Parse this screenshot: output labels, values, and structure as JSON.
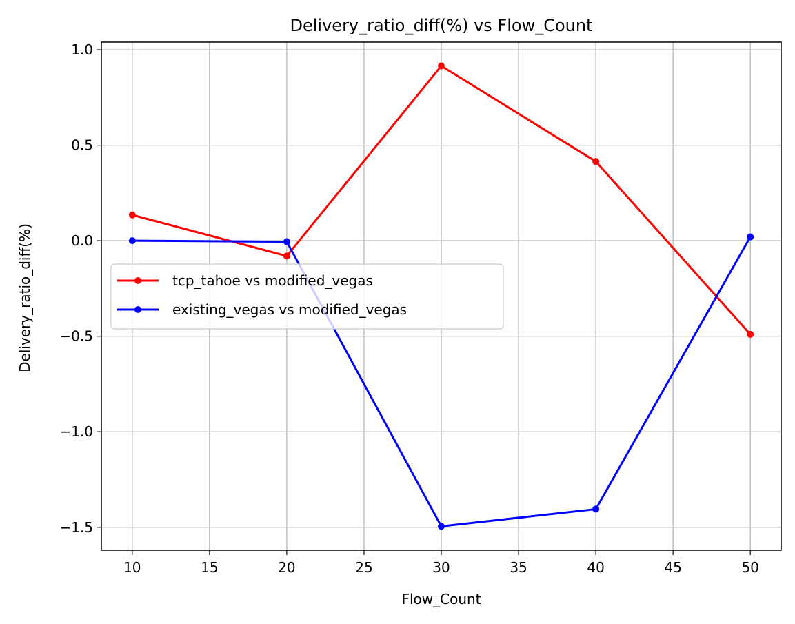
{
  "chart_data": {
    "type": "line",
    "title": "Delivery_ratio_diff(%) vs Flow_Count",
    "xlabel": "Flow_Count",
    "ylabel": "Delivery_ratio_diff(%)",
    "x": [
      10,
      20,
      30,
      40,
      50
    ],
    "xlim": [
      8,
      52
    ],
    "ylim": [
      -1.62,
      1.04
    ],
    "xticks": [
      10,
      15,
      20,
      25,
      30,
      35,
      40,
      45,
      50
    ],
    "yticks": [
      1.0,
      0.5,
      0.0,
      -0.5,
      -1.0,
      -1.5
    ],
    "ytick_labels": [
      "1.0",
      "0.5",
      "0.0",
      "−0.5",
      "−1.0",
      "−1.5"
    ],
    "grid": true,
    "legend_position": "center-left",
    "series": [
      {
        "name": "tcp_tahoe vs modified_vegas",
        "color": "#ff0000",
        "values": [
          0.135,
          -0.08,
          0.915,
          0.415,
          -0.49
        ]
      },
      {
        "name": "existing_vegas vs modified_vegas",
        "color": "#0000ff",
        "values": [
          0.0,
          -0.005,
          -1.495,
          -1.405,
          0.02
        ]
      }
    ]
  }
}
